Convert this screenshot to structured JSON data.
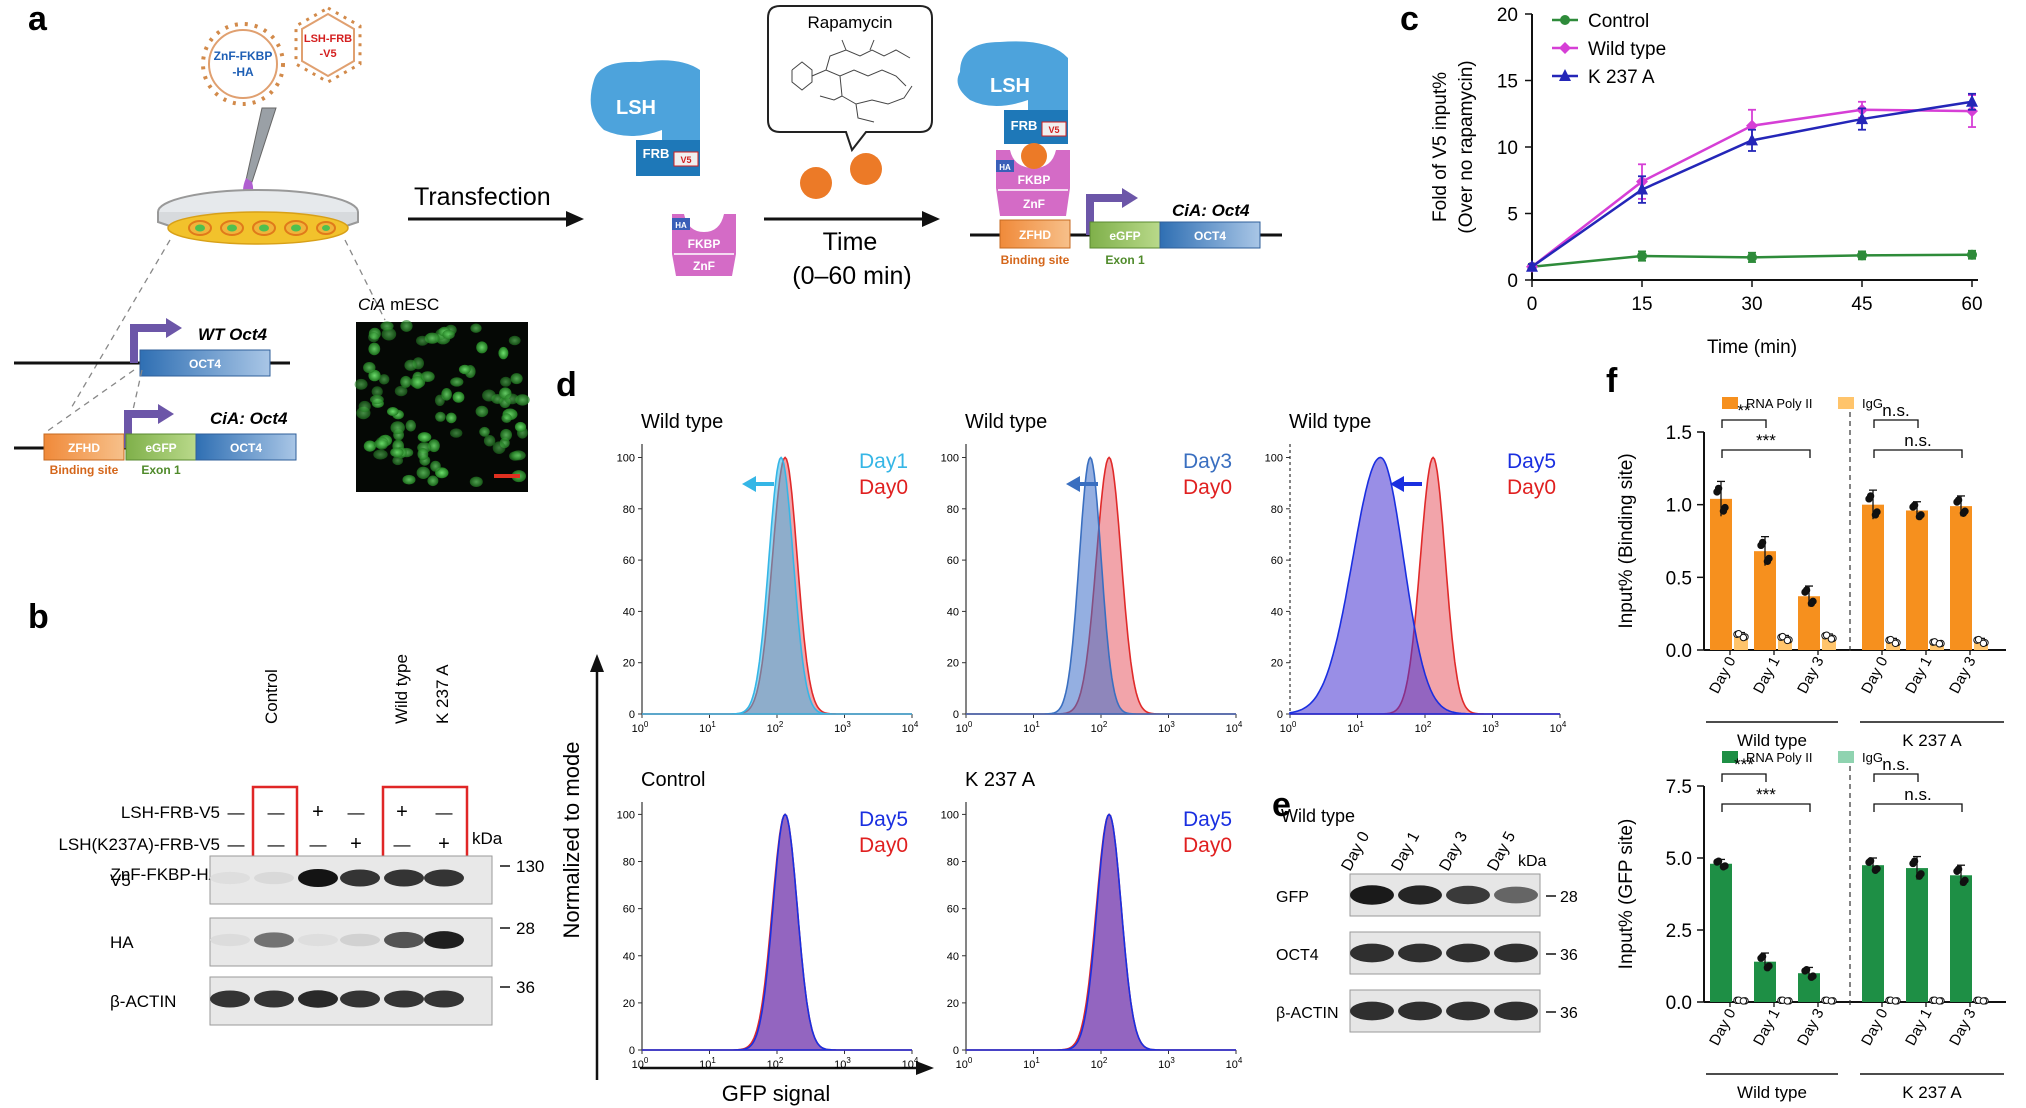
{
  "panels": {
    "a": "a",
    "b": "b",
    "c": "c",
    "d": "d",
    "e": "e",
    "f": "f"
  },
  "panel_a": {
    "virus1_line1": "ZnF-FKBP",
    "virus1_line2": "-HA",
    "virus2_line1": "LSH-FRB",
    "virus2_line2": "-V5",
    "wt_label": "WT Oct4",
    "oct4": "OCT4",
    "cia_label": "CiA: Oct4",
    "zfhd": "ZFHD",
    "egfp": "eGFP",
    "binding_site": "Binding site",
    "exon1": "Exon 1",
    "mesc_label_it": "CiA",
    "mesc_label_rest": " mESC",
    "transfection": "Transfection",
    "rapamycin": "Rapamycin",
    "time": "Time",
    "time_range": "(0–60 min)",
    "lsh": "LSH",
    "frb": "FRB",
    "v5": "V5",
    "ha": "HA",
    "fkbp": "FKBP",
    "znf": "ZnF"
  },
  "panel_b": {
    "lanes": [
      "Control",
      "Wild type",
      "K 237 A"
    ],
    "rows": [
      {
        "label": "LSH-FRB-V5",
        "marks": [
          "—",
          "+",
          "—",
          "+",
          "—"
        ]
      },
      {
        "label": "LSH(K237A)-FRB-V5",
        "marks": [
          "—",
          "—",
          "+",
          "—",
          "+"
        ]
      },
      {
        "label": "ZnF-FKBP-HA",
        "marks": [
          "+",
          "—",
          "—",
          "+",
          "+"
        ]
      }
    ],
    "kda": "kDa",
    "blots": [
      {
        "label": "V5",
        "marker": "130"
      },
      {
        "label": "HA",
        "marker": "28"
      },
      {
        "label": "β-ACTIN",
        "marker": "36"
      }
    ]
  },
  "panel_e": {
    "title": "Wild type",
    "lanes": [
      "Day 0",
      "Day 1",
      "Day 3",
      "Day 5"
    ],
    "kda": "kDa",
    "blots": [
      {
        "label": "GFP",
        "marker": "28"
      },
      {
        "label": "OCT4",
        "marker": "36"
      },
      {
        "label": "β-ACTIN",
        "marker": "36"
      }
    ]
  },
  "panel_d": {
    "ylabel": "Normalized to mode",
    "xlabel": "GFP signal",
    "yticks": [
      "0",
      "20",
      "40",
      "60",
      "80",
      "100"
    ],
    "xticks": [
      {
        "b": "10",
        "e": "0"
      },
      {
        "b": "10",
        "e": "1"
      },
      {
        "b": "10",
        "e": "2"
      },
      {
        "b": "10",
        "e": "3"
      },
      {
        "b": "10",
        "e": "4"
      }
    ],
    "plots": [
      {
        "title": "Wild type",
        "test": "Day1",
        "ref": "Day0",
        "test_color": "#35b6e6"
      },
      {
        "title": "Wild type",
        "test": "Day3",
        "ref": "Day0",
        "test_color": "#3a6fc0"
      },
      {
        "title": "Wild type",
        "test": "Day5",
        "ref": "Day0",
        "test_color": "#1a2fe0"
      },
      {
        "title": "Control",
        "test": "Day5",
        "ref": "Day0",
        "test_color": "#1a2fe0"
      },
      {
        "title": "K 237 A",
        "test": "Day5",
        "ref": "Day0",
        "test_color": "#1a2fe0"
      }
    ]
  },
  "chart_data": [
    {
      "type": "line",
      "xlabel": "Time (min)",
      "ylabel": "Fold of V5 input% (Over no rapamycin)",
      "ylabel_line1": "Fold of V5 input%",
      "ylabel_line2": "(Over no rapamycin)",
      "x": [
        0,
        15,
        30,
        45,
        60
      ],
      "xlim": [
        0,
        60
      ],
      "ylim": [
        0,
        20
      ],
      "yticks": [
        0,
        5,
        10,
        15,
        20
      ],
      "legend": "top-left",
      "series": [
        {
          "name": "Control",
          "color": "#2e8b3a",
          "marker": "circle",
          "values": [
            1.0,
            1.8,
            1.7,
            1.85,
            1.9
          ],
          "err": [
            0.15,
            0.35,
            0.35,
            0.3,
            0.3
          ]
        },
        {
          "name": "Wild type",
          "color": "#d63fd6",
          "marker": "diamond",
          "values": [
            1.0,
            7.4,
            11.6,
            12.8,
            12.7
          ],
          "err": [
            0.2,
            1.3,
            1.2,
            0.6,
            1.2
          ]
        },
        {
          "name": "K 237 A",
          "color": "#2426b8",
          "marker": "triangle",
          "values": [
            1.0,
            6.8,
            10.5,
            12.1,
            13.4
          ],
          "err": [
            0.2,
            1.0,
            0.8,
            0.8,
            0.6
          ]
        }
      ]
    },
    {
      "type": "bar",
      "ylabel": "Input% (Binding site)",
      "ylim": [
        0,
        1.5
      ],
      "yticks": [
        "0.0",
        "0.5",
        "1.0",
        "1.5"
      ],
      "categories": [
        "Day 0",
        "Day 1",
        "Day 3",
        "Day 0",
        "Day 1",
        "Day 3"
      ],
      "groups": [
        "Wild type",
        "K 237 A"
      ],
      "legend": "top",
      "series": [
        {
          "name": "RNA Poly II",
          "color": "#f6901e",
          "values": [
            1.04,
            0.68,
            0.37,
            1.0,
            0.96,
            0.99
          ],
          "err": [
            0.12,
            0.1,
            0.07,
            0.1,
            0.06,
            0.07
          ]
        },
        {
          "name": "IgG",
          "color": "#ffc46b",
          "values": [
            0.1,
            0.08,
            0.09,
            0.06,
            0.05,
            0.06
          ],
          "err": [
            0.02,
            0.02,
            0.02,
            0.02,
            0.01,
            0.02
          ]
        }
      ],
      "significance": [
        {
          "label": "**",
          "from": 0,
          "to": 1
        },
        {
          "label": "***",
          "from": 0,
          "to": 2
        },
        {
          "label": "n.s.",
          "from": 3,
          "to": 4
        },
        {
          "label": "n.s.",
          "from": 3,
          "to": 5
        }
      ]
    },
    {
      "type": "bar",
      "ylabel": "Input% (GFP site)",
      "ylim": [
        0,
        7.5
      ],
      "yticks": [
        "0.0",
        "2.5",
        "5.0",
        "7.5"
      ],
      "categories": [
        "Day 0",
        "Day 1",
        "Day 3",
        "Day 0",
        "Day 1",
        "Day 3"
      ],
      "groups": [
        "Wild type",
        "K 237 A"
      ],
      "legend": "top",
      "series": [
        {
          "name": "RNA Poly II",
          "color": "#1e8f45",
          "values": [
            4.8,
            1.4,
            1.0,
            4.75,
            4.65,
            4.4
          ],
          "err": [
            0.15,
            0.3,
            0.2,
            0.25,
            0.4,
            0.35
          ]
        },
        {
          "name": "IgG",
          "color": "#8fd3b0",
          "values": [
            0.05,
            0.05,
            0.05,
            0.05,
            0.05,
            0.05
          ],
          "err": [
            0.02,
            0.02,
            0.02,
            0.02,
            0.02,
            0.02
          ]
        }
      ],
      "significance": [
        {
          "label": "***",
          "from": 0,
          "to": 1
        },
        {
          "label": "***",
          "from": 0,
          "to": 2
        },
        {
          "label": "n.s.",
          "from": 3,
          "to": 4
        },
        {
          "label": "n.s.",
          "from": 3,
          "to": 5
        }
      ]
    }
  ]
}
